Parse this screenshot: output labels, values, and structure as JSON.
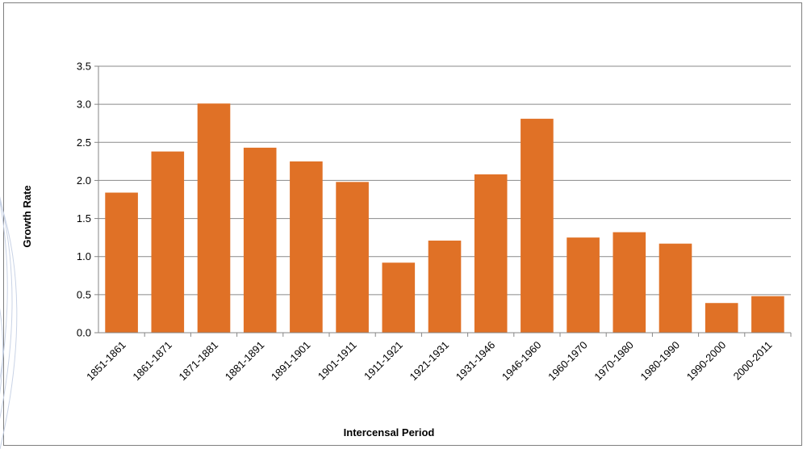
{
  "chart_data": {
    "type": "bar",
    "title": "",
    "xlabel": "Intercensal Period",
    "ylabel": "Growth Rate",
    "ylim": [
      0,
      3.5
    ],
    "yticks": [
      "0.0",
      "0.5",
      "1.0",
      "1.5",
      "2.0",
      "2.5",
      "3.0",
      "3.5"
    ],
    "grid": true,
    "legend": "none",
    "bar_color": "#E07126",
    "categories": [
      "1851-1861",
      "1861-1871",
      "1871-1881",
      "1881-1891",
      "1891-1901",
      "1901-1911",
      "1911-1921",
      "1921-1931",
      "1931-1946",
      "1946-1960",
      "1960-1970",
      "1970-1980",
      "1980-1990",
      "1990-2000",
      "2000-2011"
    ],
    "values": [
      1.84,
      2.38,
      3.01,
      2.43,
      2.25,
      1.98,
      0.92,
      1.21,
      2.08,
      2.81,
      1.25,
      1.32,
      1.17,
      0.39,
      0.48
    ]
  }
}
